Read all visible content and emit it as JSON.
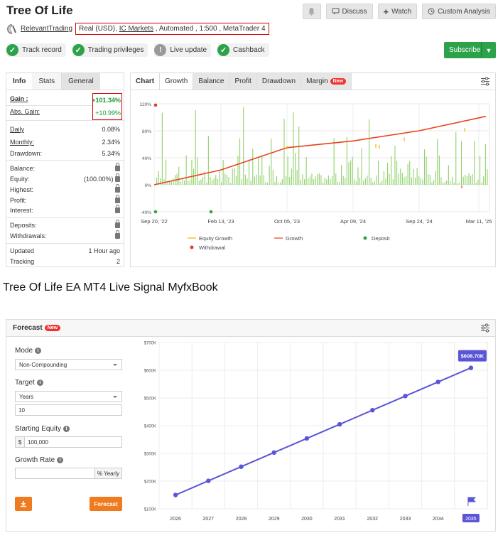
{
  "header": {
    "title": "Tree Of Life",
    "buttons": {
      "discuss": "Discuss",
      "watch": "Watch",
      "custom_analysis": "Custom Analysis"
    },
    "author": "RelevantTrading",
    "account": {
      "prefix": "Real (USD), ",
      "broker": "IC Markets",
      "rest": " , Automated , 1:500 , MetaTrader 4"
    },
    "badges": [
      "Track record",
      "Trading privileges",
      "Live update",
      "Cashback"
    ],
    "subscribe": "Subscribe"
  },
  "stats": {
    "tabs": [
      "Info",
      "Stats",
      "General"
    ],
    "gain_label": "Gain :",
    "gain_value": "+101.34%",
    "abs_gain_label": "Abs. Gain:",
    "abs_gain_value": "+10.99%",
    "daily_label": "Daily",
    "daily_value": "0.08%",
    "monthly_label": "Monthly:",
    "monthly_value": "2.34%",
    "drawdown_label": "Drawdown:",
    "drawdown_value": "5.34%",
    "balance_label": "Balance:",
    "equity_label": "Equity:",
    "equity_value": "(100.00%)",
    "highest_label": "Highest:",
    "profit_label": "Profit:",
    "interest_label": "Interest:",
    "deposits_label": "Deposits:",
    "withdrawals_label": "Withdrawals:",
    "updated_label": "Updated",
    "updated_value": "1 Hour ago",
    "tracking_label": "Tracking",
    "tracking_value": "2"
  },
  "chart_panel": {
    "tabs": [
      "Chart",
      "Growth",
      "Balance",
      "Profit",
      "Drawdown",
      "Margin"
    ],
    "new_badge": "New",
    "y_ticks": [
      "120%",
      "80%",
      "40%",
      "0%",
      "-40%"
    ],
    "x_ticks": [
      "Sep 20, '22",
      "Feb 13, '23",
      "Oct 05, '23",
      "Apr 09, '24",
      "Sep 24, '24",
      "Mar 11, '25"
    ],
    "legend": [
      "Equity Growth",
      "Growth",
      "Deposit",
      "Withdrawal"
    ]
  },
  "caption": "Tree Of Life EA MT4 Live Signal MyfxBook",
  "forecast": {
    "title": "Forecast",
    "new_badge": "New",
    "mode_label": "Mode",
    "mode_value": "Non-Compounding",
    "target_label": "Target",
    "target_unit": "Years",
    "target_value": "10",
    "equity_label": "Starting Equity",
    "equity_prefix": "$",
    "equity_value": "100,000",
    "rate_label": "Growth Rate",
    "rate_suffix": "% Yearly",
    "forecast_button": "Forecast",
    "tooltip": "$608.70K"
  },
  "chart_data": [
    {
      "type": "line",
      "title": "Growth",
      "x": [
        "Sep 20, '22",
        "Feb 13, '23",
        "Oct 05, '23",
        "Apr 09, '24",
        "Sep 24, '24",
        "Mar 11, '25"
      ],
      "series": [
        {
          "name": "Growth",
          "values": [
            0,
            22,
            55,
            65,
            80,
            101.34
          ]
        }
      ],
      "ylim": [
        -40,
        120
      ],
      "legend": [
        "Equity Growth",
        "Growth",
        "Deposit",
        "Withdrawal"
      ]
    },
    {
      "type": "line",
      "categories": [
        "2026",
        "2027",
        "2028",
        "2029",
        "2030",
        "2031",
        "2032",
        "2033",
        "2034",
        "2035"
      ],
      "series": [
        {
          "values": [
            150,
            201,
            252,
            303,
            354,
            405,
            456,
            507,
            558,
            608.7
          ]
        }
      ],
      "y_ticks": [
        "$100K",
        "$200K",
        "$300K",
        "$400K",
        "$500K",
        "$600K",
        "$700K"
      ],
      "ylim": [
        100,
        700
      ]
    }
  ]
}
